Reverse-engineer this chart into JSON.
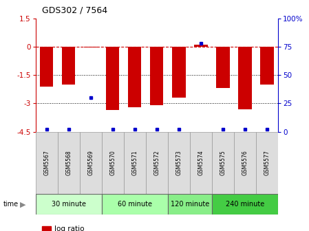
{
  "title": "GDS302 / 7564",
  "samples": [
    "GSM5567",
    "GSM5568",
    "GSM5569",
    "GSM5570",
    "GSM5571",
    "GSM5572",
    "GSM5573",
    "GSM5574",
    "GSM5575",
    "GSM5576",
    "GSM5577"
  ],
  "log_ratios": [
    -2.1,
    -2.0,
    -0.05,
    -3.35,
    -3.2,
    -3.1,
    -2.7,
    0.1,
    -2.2,
    -3.3,
    -2.0
  ],
  "percentile_ranks": [
    2,
    2,
    30,
    2,
    2,
    2,
    2,
    78,
    2,
    2,
    2
  ],
  "groups": [
    {
      "label": "30 minute",
      "samples": [
        0,
        1,
        2
      ],
      "color": "#ccffcc"
    },
    {
      "label": "60 minute",
      "samples": [
        3,
        4,
        5
      ],
      "color": "#aaffaa"
    },
    {
      "label": "120 minute",
      "samples": [
        6,
        7
      ],
      "color": "#88ee88"
    },
    {
      "label": "240 minute",
      "samples": [
        8,
        9,
        10
      ],
      "color": "#44cc44"
    }
  ],
  "ylim": [
    -4.5,
    1.5
  ],
  "yticks": [
    1.5,
    0,
    -1.5,
    -3,
    -4.5
  ],
  "ytick_labels": [
    "1.5",
    "0",
    "-1.5",
    "-3",
    "-4.5"
  ],
  "y2ticks": [
    0,
    25,
    50,
    75,
    100
  ],
  "y2tick_labels": [
    "0",
    "25",
    "50",
    "75",
    "100%"
  ],
  "bar_color": "#cc0000",
  "percentile_color": "#0000cc",
  "hline_color": "#cc0000",
  "gridline_color": "#000000",
  "sample_box_color": "#dddddd",
  "sample_box_edge": "#999999",
  "background_color": "#ffffff"
}
